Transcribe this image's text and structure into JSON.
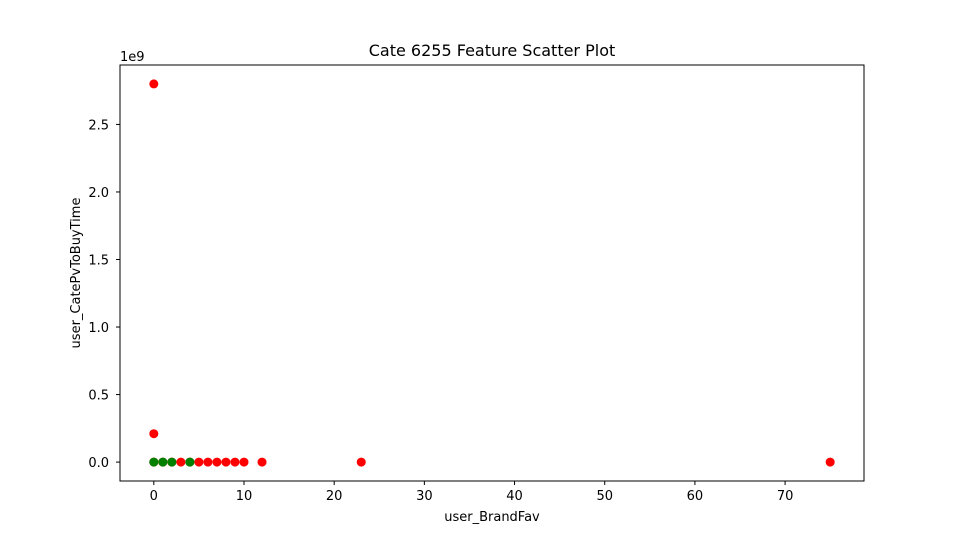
{
  "chart_data": {
    "type": "scatter",
    "title": "Cate 6255 Feature Scatter Plot",
    "xlabel": "user_BrandFav",
    "ylabel": "user_CatePvToBuyTime",
    "y_offset_text": "1e9",
    "xlim": [
      -3.75,
      78.75
    ],
    "ylim": [
      -140000000,
      2940000000
    ],
    "x_ticks": [
      0,
      10,
      20,
      30,
      40,
      50,
      60,
      70
    ],
    "x_tick_labels": [
      "0",
      "10",
      "20",
      "30",
      "40",
      "50",
      "60",
      "70"
    ],
    "y_ticks": [
      0,
      500000000,
      1000000000,
      1500000000,
      2000000000,
      2500000000
    ],
    "y_tick_labels": [
      "0.0",
      "0.5",
      "1.0",
      "1.5",
      "2.0",
      "2.5"
    ],
    "grid": false,
    "series": [
      {
        "color": "#ff0000",
        "points": [
          [
            0,
            2800000000
          ],
          [
            0,
            210000000
          ],
          [
            0,
            0
          ],
          [
            1,
            0
          ],
          [
            2,
            0
          ],
          [
            3,
            0
          ],
          [
            4,
            0
          ],
          [
            5,
            0
          ],
          [
            6,
            0
          ],
          [
            7,
            0
          ],
          [
            8,
            0
          ],
          [
            9,
            0
          ],
          [
            10,
            0
          ],
          [
            12,
            0
          ],
          [
            23,
            0
          ],
          [
            75,
            0
          ]
        ]
      },
      {
        "color": "#008000",
        "points": [
          [
            0,
            0
          ],
          [
            1,
            0
          ],
          [
            2,
            0
          ],
          [
            4,
            0
          ]
        ]
      }
    ]
  }
}
